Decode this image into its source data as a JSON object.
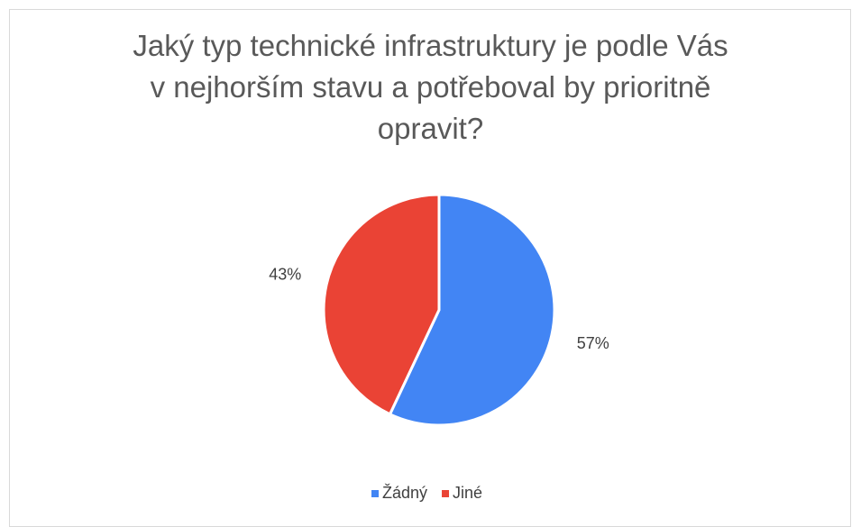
{
  "chart_data": {
    "type": "pie",
    "title": "Jaký typ technické infrastruktury je podle Vás\nv nejhorším stavu a potřeboval by prioritně\nopravit?",
    "categories": [
      "Žádný",
      "Jiné"
    ],
    "values": [
      57,
      43
    ],
    "value_labels": [
      "57%",
      "43%"
    ],
    "colors": [
      "#4285f4",
      "#ea4335"
    ],
    "legend": "bottom"
  }
}
